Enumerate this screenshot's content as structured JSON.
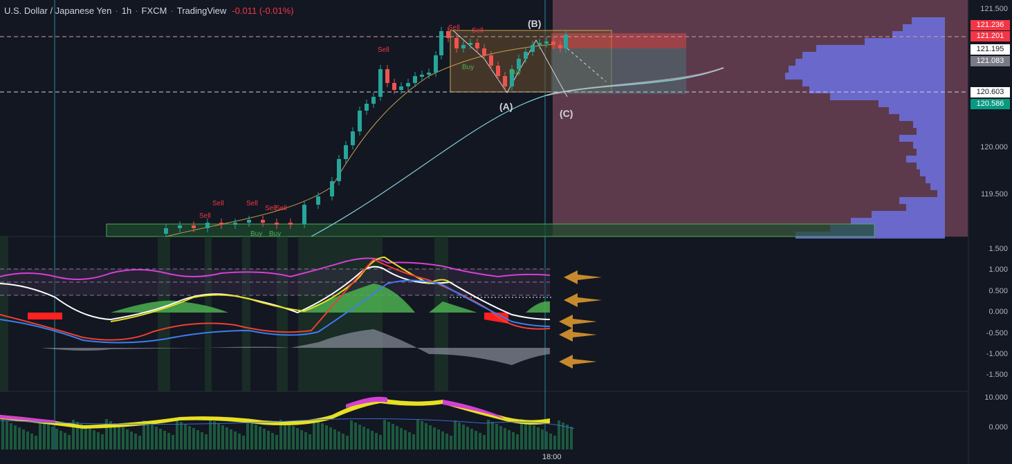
{
  "header": {
    "symbol": "U.S. Dollar / Japanese Yen",
    "interval": "1h",
    "source": "FXCM",
    "platform": "TradingView",
    "change": "-0.011 (-0.01%)"
  },
  "price_axis": {
    "ticks": [
      "121.500",
      "120.000",
      "119.500"
    ],
    "tags": [
      {
        "label": "121.236",
        "color": "#f23645"
      },
      {
        "label": "121.201",
        "color": "#f23645"
      },
      {
        "label": "121.195",
        "color": "#ffffff"
      },
      {
        "label": "121.083",
        "color": "#787b86"
      },
      {
        "label": "120.603",
        "color": "#ffffff"
      },
      {
        "label": "120.586",
        "color": "#089981"
      }
    ]
  },
  "oscillator_axis": {
    "ticks": [
      "1.500",
      "1.000",
      "0.500",
      "0.000",
      "-0.500",
      "-1.000",
      "-1.500"
    ]
  },
  "volume_axis": {
    "ticks": [
      "10.000",
      "0.000"
    ]
  },
  "time_axis": {
    "labels": [
      "18:00"
    ]
  },
  "annotations": {
    "a": "(A)",
    "b": "(B)",
    "c": "(C)"
  },
  "signals": {
    "sell": "Sell",
    "buy": "Buy"
  },
  "colors": {
    "bull": "#26a69a",
    "bear": "#ef5350",
    "background": "#131722",
    "zone": "#5c3a4c",
    "profile": "#6c6ed8"
  }
}
